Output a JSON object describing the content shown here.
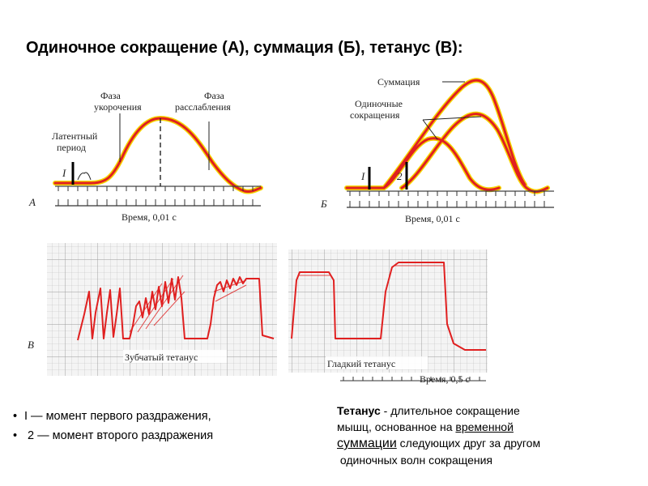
{
  "title": "Одиночное сокращение (А),  суммация (Б),  тетанус (В):",
  "panel_a": {
    "letter": "А",
    "phase_shortening": [
      "Фаза",
      "укорочения"
    ],
    "phase_relaxation": [
      "Фаза",
      "расслабления"
    ],
    "latent": [
      "Латентный",
      "период"
    ],
    "stim_mark": "I",
    "time_label": "Время, 0,01 с"
  },
  "panel_b": {
    "letter": "Б",
    "summation": "Суммация",
    "single": [
      "Одиночные",
      "сокращения"
    ],
    "stim1": "I",
    "stim2": "2",
    "time_label": "Время, 0,01 с"
  },
  "panel_c": {
    "letter": "В",
    "jagged": "Зубчатый тетанус",
    "smooth": "Гладкий тетанус",
    "time_label": "Время, 0,5 с"
  },
  "bullets": [
    "I — момент первого раздражения,",
    " 2 — момент второго раздражения"
  ],
  "note": {
    "term": "Тетанус",
    "part1": " - длительное сокращение",
    "part2": "мышц,  основанное на ",
    "link1": "временной",
    "link2": "суммации",
    "part3": " следующих друг за другом",
    "part4": " одиночных волн сокращения"
  }
}
